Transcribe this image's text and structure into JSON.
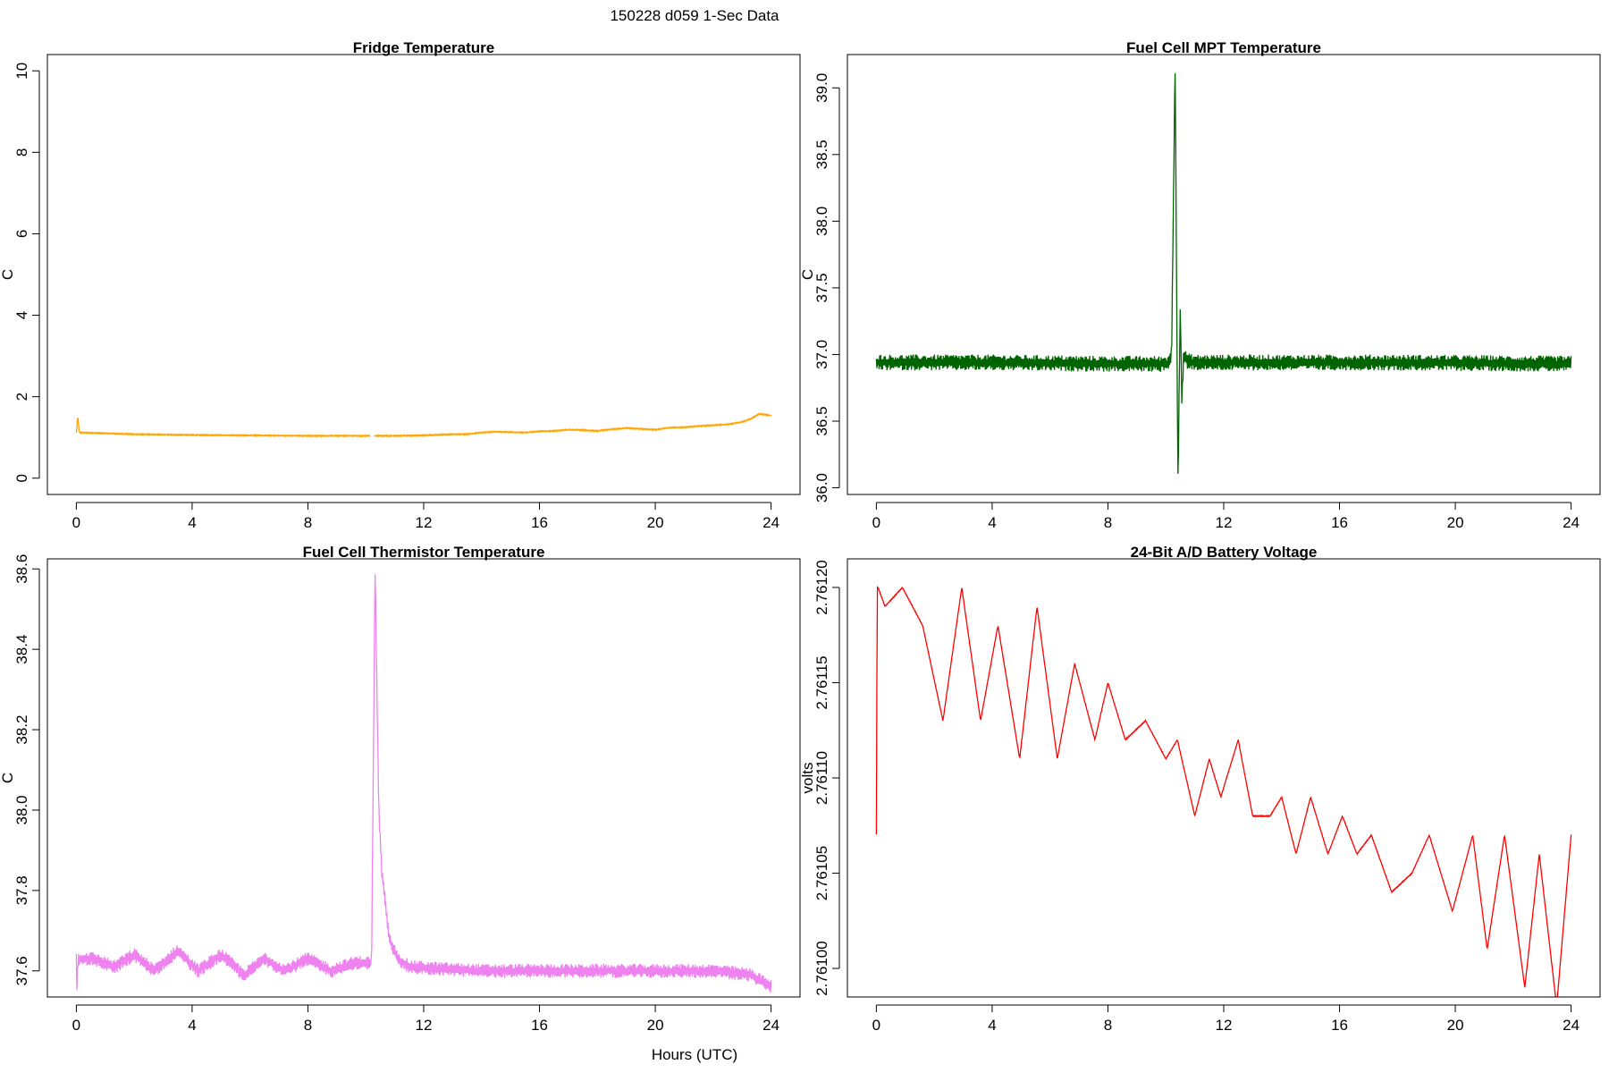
{
  "page_title": "150228   d059   1-Sec Data",
  "shared_xlabel": "Hours (UTC)",
  "chart_data": [
    {
      "type": "line",
      "title": "Fridge Temperature",
      "xlabel": "",
      "ylabel": "C",
      "xlim": [
        -1,
        25
      ],
      "ylim": [
        -0.4,
        10.4
      ],
      "xticks": [
        0,
        4,
        8,
        12,
        16,
        20,
        24
      ],
      "yticks": [
        0,
        2,
        4,
        6,
        8,
        10
      ],
      "ytick_labels": [
        "0",
        "2",
        "4",
        "6",
        "8",
        "10"
      ],
      "color": "#ffa500",
      "noise": 0.03,
      "series": [
        {
          "name": "fridge",
          "x": [
            0,
            0.05,
            0.1,
            1,
            2,
            3,
            4,
            6,
            8,
            10,
            10.15
          ],
          "y": [
            1.1,
            1.55,
            1.12,
            1.1,
            1.08,
            1.07,
            1.06,
            1.05,
            1.04,
            1.04,
            1.04
          ]
        },
        {
          "name": "fridge-b",
          "x": [
            10.3,
            11,
            12,
            13,
            13.5,
            14,
            14.5,
            15,
            15.5,
            16,
            16.5,
            17,
            17.5,
            18,
            18.5,
            19,
            19.5,
            20,
            20.5,
            21,
            21.5,
            22,
            22.5,
            23,
            23.3,
            23.6,
            24
          ],
          "y": [
            1.04,
            1.04,
            1.05,
            1.08,
            1.08,
            1.12,
            1.14,
            1.13,
            1.12,
            1.15,
            1.16,
            1.19,
            1.18,
            1.16,
            1.2,
            1.23,
            1.21,
            1.19,
            1.24,
            1.25,
            1.28,
            1.3,
            1.32,
            1.38,
            1.46,
            1.58,
            1.54
          ]
        }
      ]
    },
    {
      "type": "line",
      "title": "Fuel Cell MPT Temperature",
      "xlabel": "",
      "ylabel": "C",
      "xlim": [
        -1,
        25
      ],
      "ylim": [
        35.95,
        39.25
      ],
      "xticks": [
        0,
        4,
        8,
        12,
        16,
        20,
        24
      ],
      "yticks": [
        36.0,
        36.5,
        37.0,
        37.5,
        38.0,
        38.5,
        39.0
      ],
      "ytick_labels": [
        "36.0",
        "36.5",
        "37.0",
        "37.5",
        "38.0",
        "38.5",
        "39.0"
      ],
      "color": "#006400",
      "noise": 0.12,
      "series": [
        {
          "name": "mpt",
          "x": [
            0,
            4,
            8,
            10.05,
            10.2,
            10.32,
            10.42,
            10.5,
            10.55,
            10.62,
            10.75,
            11,
            14,
            18,
            24
          ],
          "y": [
            36.94,
            36.94,
            36.93,
            36.93,
            37.0,
            39.2,
            36.02,
            37.4,
            36.65,
            37.0,
            36.95,
            36.94,
            36.94,
            36.94,
            36.93
          ]
        }
      ]
    },
    {
      "type": "line",
      "title": "Fuel Cell Thermistor Temperature",
      "xlabel": "",
      "ylabel": "C",
      "xlim": [
        -1,
        25
      ],
      "ylim": [
        37.535,
        38.625
      ],
      "xticks": [
        0,
        4,
        8,
        12,
        16,
        20,
        24
      ],
      "yticks": [
        37.6,
        37.8,
        38.0,
        38.2,
        38.4,
        38.6
      ],
      "ytick_labels": [
        "37.6",
        "37.8",
        "38.0",
        "38.2",
        "38.4",
        "38.6"
      ],
      "color": "#ee82ee",
      "noise": 0.035,
      "series": [
        {
          "name": "thermistor",
          "x": [
            0,
            0.02,
            0.06,
            0.6,
            1.3,
            2.0,
            2.7,
            3.5,
            4.2,
            5.0,
            5.8,
            6.5,
            7.2,
            8.0,
            8.8,
            9.6,
            10.2,
            10.32,
            10.45,
            10.55,
            10.8,
            11.1,
            11.5,
            12.5,
            14,
            16,
            18,
            20,
            22,
            23.3,
            24
          ],
          "y": [
            37.63,
            37.56,
            37.63,
            37.63,
            37.61,
            37.64,
            37.6,
            37.65,
            37.6,
            37.64,
            37.59,
            37.63,
            37.6,
            37.63,
            37.6,
            37.62,
            37.62,
            38.6,
            38.0,
            37.85,
            37.68,
            37.63,
            37.61,
            37.605,
            37.6,
            37.6,
            37.6,
            37.6,
            37.6,
            37.59,
            37.56
          ]
        }
      ]
    },
    {
      "type": "line",
      "title": "24-Bit A/D Battery Voltage",
      "xlabel": "",
      "ylabel": "volts",
      "xlim": [
        -1,
        25
      ],
      "ylim": [
        2.760985,
        2.761215
      ],
      "xticks": [
        0,
        4,
        8,
        12,
        16,
        20,
        24
      ],
      "yticks": [
        2.761,
        2.76105,
        2.7611,
        2.76115,
        2.7612
      ],
      "ytick_labels": [
        "2.76100",
        "2.76105",
        "2.76110",
        "2.76115",
        "2.76120"
      ],
      "color": "#ff0000",
      "noise": 6e-07,
      "series": [
        {
          "name": "battery",
          "x": [
            0,
            0.03,
            0.06,
            0.3,
            0.9,
            1.6,
            2.3,
            2.95,
            3.6,
            4.2,
            4.95,
            5.55,
            6.25,
            6.85,
            7.55,
            8.0,
            8.6,
            9.3,
            10.0,
            10.4,
            11.0,
            11.5,
            11.9,
            12.5,
            13.0,
            13.6,
            14.0,
            14.5,
            15.0,
            15.6,
            16.1,
            16.6,
            17.1,
            17.8,
            18.5,
            19.1,
            19.9,
            20.6,
            21.1,
            21.7,
            22.4,
            22.9,
            23.5,
            24.0
          ],
          "y": [
            2.76107,
            2.7612,
            2.7612,
            2.76119,
            2.7612,
            2.76118,
            2.76113,
            2.7612,
            2.76113,
            2.76118,
            2.76111,
            2.76119,
            2.76111,
            2.76116,
            2.76112,
            2.76115,
            2.76112,
            2.76113,
            2.76111,
            2.76112,
            2.76108,
            2.76111,
            2.76109,
            2.76112,
            2.76108,
            2.76108,
            2.76109,
            2.76106,
            2.76109,
            2.76106,
            2.76108,
            2.76106,
            2.76107,
            2.76104,
            2.76105,
            2.76107,
            2.76103,
            2.76107,
            2.76101,
            2.76107,
            2.76099,
            2.76106,
            2.76098,
            2.76107
          ]
        }
      ]
    }
  ]
}
